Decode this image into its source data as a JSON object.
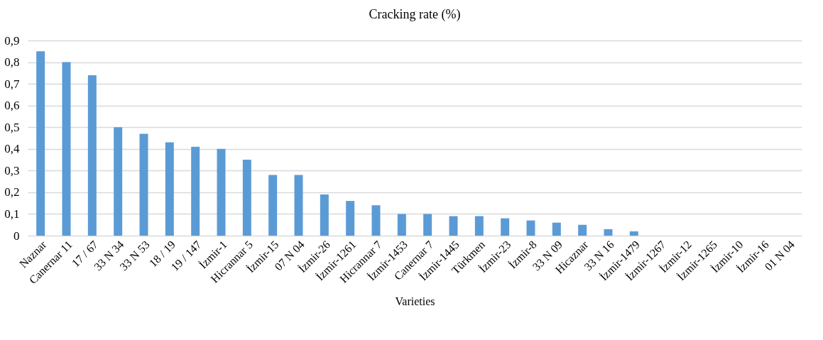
{
  "chart_data": {
    "type": "bar",
    "title": "Cracking rate (%)",
    "xlabel": "Varieties",
    "categories": [
      "Naznar",
      "Canernar 11",
      "17 / 67",
      "33 N 34",
      "33 N 53",
      "18 / 19",
      "19 / 147",
      "İzmir-1",
      "Hicrannar 5",
      "İzmir-15",
      "07 N 04",
      "İzmir-26",
      "İzmir-1261",
      "Hicrannar 7",
      "İzmir-1453",
      "Canernar 7",
      "İzmir-1445",
      "Türkmen",
      "İzmir-23",
      "İzmir-8",
      "33 N 09",
      "Hicaznar",
      "33 N 16",
      "İzmir-1479",
      "İzmir-1267",
      "İzmir-12",
      "İzmir-1265",
      "İzmir-10",
      "İzmir-16",
      "01 N 04"
    ],
    "values": [
      0.85,
      0.8,
      0.74,
      0.5,
      0.47,
      0.43,
      0.41,
      0.4,
      0.35,
      0.28,
      0.28,
      0.19,
      0.16,
      0.14,
      0.1,
      0.1,
      0.09,
      0.09,
      0.08,
      0.07,
      0.06,
      0.05,
      0.03,
      0.02,
      0,
      0,
      0,
      0,
      0,
      0
    ],
    "color": "#5b9bd5",
    "ylim": [
      0,
      0.9
    ],
    "yticks": [
      0,
      {
        "value": 0.1,
        "label": "0,1"
      },
      {
        "value": 0.2,
        "label": "0,2"
      },
      {
        "value": 0.3,
        "label": "0,3"
      },
      {
        "value": 0.4,
        "label": "0,4"
      },
      {
        "value": 0.5,
        "label": "0,5"
      },
      {
        "value": 0.6,
        "label": "0,6"
      },
      {
        "value": 0.7,
        "label": "0,7"
      },
      {
        "value": 0.8,
        "label": "0,8"
      },
      {
        "value": 0.9,
        "label": "0,9"
      }
    ],
    "grid": "y"
  }
}
